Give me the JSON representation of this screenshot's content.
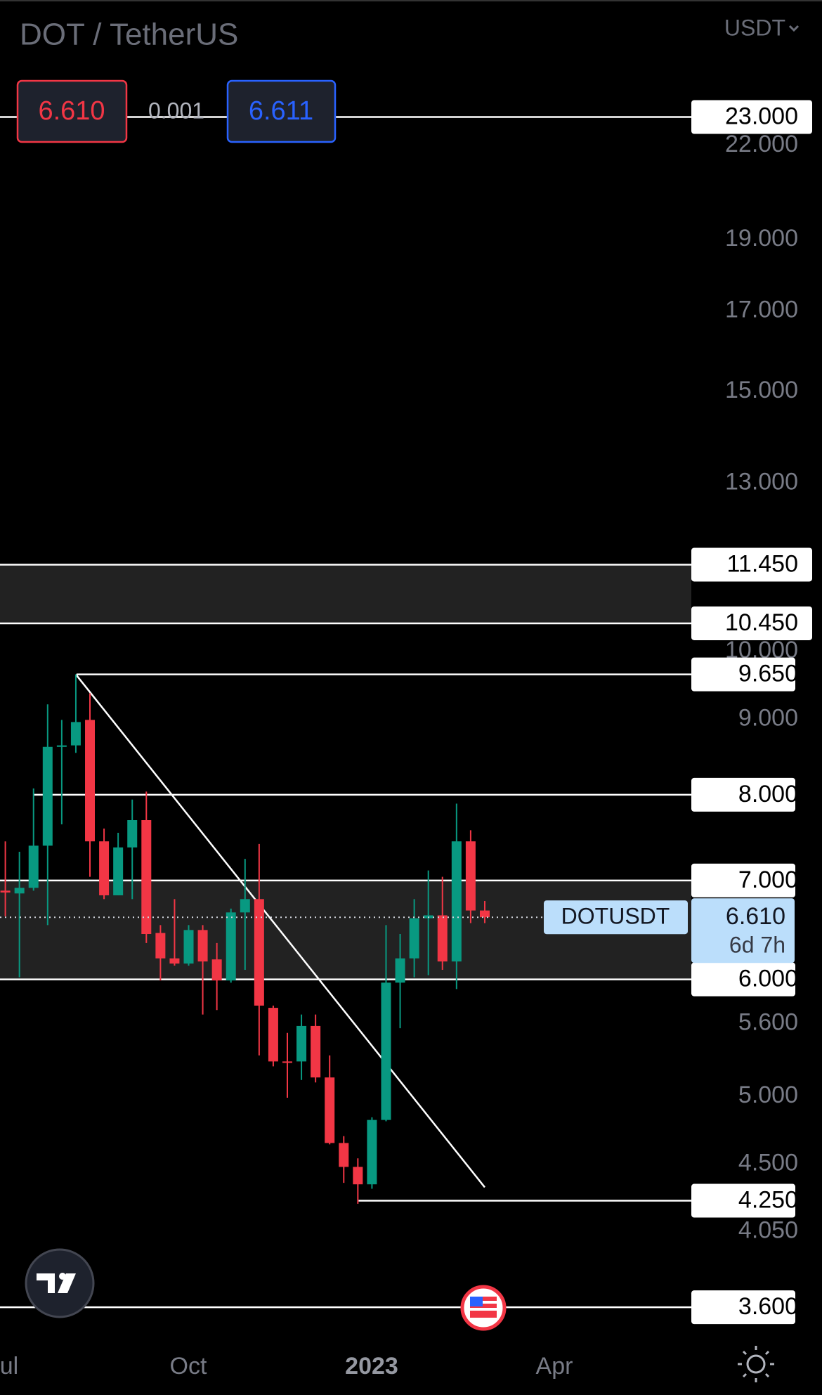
{
  "header": {
    "symbol": "DOT / TetherUS",
    "currency": "USDT",
    "sell": "6.610",
    "spread": "0.001",
    "buy": "6.611"
  },
  "chart_data": {
    "type": "candlestick",
    "log_scale": true,
    "ylim": [
      3.45,
      27.6
    ],
    "yticks": [
      {
        "value": 22,
        "label": "22.000"
      },
      {
        "value": 19,
        "label": "19.000"
      },
      {
        "value": 17,
        "label": "17.000"
      },
      {
        "value": 15,
        "label": "15.000"
      },
      {
        "value": 13,
        "label": "13.000"
      },
      {
        "value": 10,
        "label": "10.000"
      },
      {
        "value": 9,
        "label": "9.000"
      },
      {
        "value": 5.6,
        "label": "5.600"
      },
      {
        "value": 5,
        "label": "5.000"
      },
      {
        "value": 4.5,
        "label": "4.500"
      },
      {
        "value": 4.05,
        "label": "4.050"
      }
    ],
    "up_color": "#089981",
    "down_color": "#f23645",
    "open": [
      6.89,
      6.86,
      6.92,
      7.39,
      8.62,
      8.64,
      8.99,
      7.44,
      6.84,
      7.37,
      7.69,
      6.45,
      6.2,
      6.15,
      6.48,
      6.19,
      5.99,
      6.66,
      6.8,
      5.74,
      5.28,
      5.28,
      5.58,
      5.15,
      4.65,
      4.48,
      4.36,
      4.82,
      5.97,
      6.2,
      6.6,
      6.63,
      6.17,
      7.44,
      6.68
    ],
    "high": [
      7.44,
      7.32,
      8.08,
      9.21,
      8.99,
      9.65,
      9.37,
      7.59,
      7.54,
      7.94,
      8.04,
      6.53,
      6.8,
      6.53,
      6.53,
      6.35,
      6.7,
      7.24,
      7.41,
      5.76,
      5.52,
      5.68,
      5.68,
      5.33,
      4.7,
      4.54,
      4.84,
      6.53,
      6.44,
      6.8,
      7.11,
      7.04,
      7.89,
      7.57,
      6.78
    ],
    "low": [
      6.62,
      6.02,
      6.89,
      6.53,
      7.64,
      8.54,
      7.04,
      6.8,
      6.84,
      6.8,
      6.35,
      5.99,
      6.13,
      6.13,
      5.68,
      5.72,
      5.97,
      6.09,
      5.33,
      5.24,
      4.99,
      5.13,
      5.11,
      4.64,
      4.37,
      4.23,
      4.33,
      4.81,
      5.56,
      6.02,
      6.04,
      6.09,
      5.91,
      6.55,
      6.55
    ],
    "close": [
      6.87,
      6.92,
      7.39,
      8.62,
      8.64,
      8.96,
      7.44,
      6.84,
      7.37,
      7.69,
      6.44,
      6.2,
      6.15,
      6.48,
      6.17,
      5.99,
      6.66,
      6.8,
      5.76,
      5.28,
      5.27,
      5.58,
      5.15,
      4.65,
      4.48,
      4.36,
      4.82,
      5.97,
      6.2,
      6.6,
      6.63,
      6.17,
      7.44,
      6.68,
      6.61
    ],
    "levels": [
      {
        "value": 23,
        "label": "23.000"
      },
      {
        "value": 11.45,
        "label": "11.450"
      },
      {
        "value": 10.45,
        "label": "10.450"
      },
      {
        "value": 9.65,
        "label": "9.650"
      },
      {
        "value": 8,
        "label": "8.000"
      },
      {
        "value": 7,
        "label": "7.000"
      },
      {
        "value": 6,
        "label": "6.000"
      },
      {
        "value": 4.25,
        "label": "4.250"
      },
      {
        "value": 3.6,
        "label": "3.600"
      }
    ],
    "trendline": [
      9.65,
      4.34
    ],
    "last_price": {
      "symbol": "DOTUSDT",
      "value": 6.61,
      "label": "6.610",
      "countdown": "6d 7h"
    },
    "x_labels": [
      "ul",
      "Oct",
      "2023",
      "Apr"
    ]
  }
}
